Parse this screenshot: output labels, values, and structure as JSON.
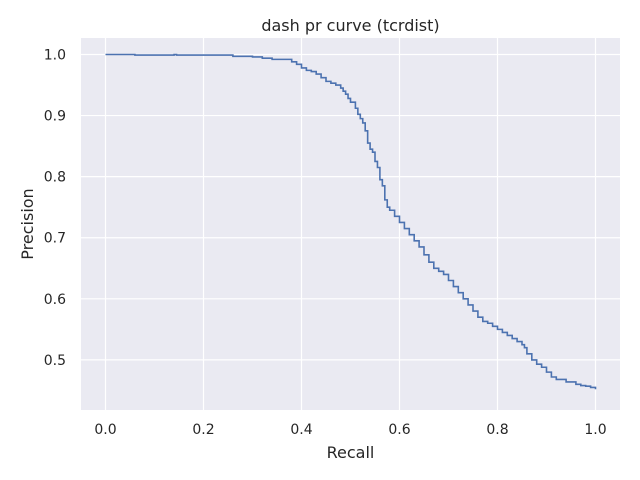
{
  "chart_data": {
    "type": "line",
    "title": "dash pr curve (tcrdist)",
    "xlabel": "Recall",
    "ylabel": "Precision",
    "xlim": [
      -0.05,
      1.05
    ],
    "ylim": [
      0.418,
      1.027
    ],
    "xticks": [
      0.0,
      0.2,
      0.4,
      0.6,
      0.8,
      1.0
    ],
    "xtick_labels": [
      "0.0",
      "0.2",
      "0.4",
      "0.6",
      "0.8",
      "1.0"
    ],
    "yticks": [
      0.5,
      0.6,
      0.7,
      0.8,
      0.9,
      1.0
    ],
    "ytick_labels": [
      "0.5",
      "0.6",
      "0.7",
      "0.8",
      "0.9",
      "1.0"
    ],
    "grid": true,
    "line_color": "#4c72b0",
    "background_color": "#eaeaf2",
    "series": [
      {
        "step": "post",
        "x": [
          0.0,
          0.06,
          0.14,
          0.145,
          0.26,
          0.3,
          0.32,
          0.34,
          0.38,
          0.39,
          0.4,
          0.41,
          0.42,
          0.43,
          0.44,
          0.45,
          0.46,
          0.47,
          0.48,
          0.485,
          0.49,
          0.495,
          0.5,
          0.51,
          0.515,
          0.52,
          0.525,
          0.53,
          0.535,
          0.54,
          0.545,
          0.55,
          0.555,
          0.56,
          0.565,
          0.57,
          0.575,
          0.58,
          0.59,
          0.6,
          0.61,
          0.62,
          0.63,
          0.64,
          0.65,
          0.66,
          0.67,
          0.68,
          0.69,
          0.7,
          0.71,
          0.72,
          0.73,
          0.74,
          0.75,
          0.76,
          0.77,
          0.78,
          0.79,
          0.8,
          0.81,
          0.82,
          0.83,
          0.84,
          0.85,
          0.855,
          0.86,
          0.87,
          0.88,
          0.89,
          0.9,
          0.91,
          0.92,
          0.94,
          0.96,
          0.97,
          0.98,
          0.99,
          1.0
        ],
        "y": [
          1.0,
          0.999,
          1.0,
          0.999,
          0.997,
          0.996,
          0.994,
          0.992,
          0.988,
          0.984,
          0.978,
          0.974,
          0.972,
          0.968,
          0.962,
          0.956,
          0.953,
          0.95,
          0.945,
          0.94,
          0.935,
          0.928,
          0.922,
          0.912,
          0.902,
          0.895,
          0.888,
          0.875,
          0.855,
          0.845,
          0.84,
          0.825,
          0.815,
          0.795,
          0.785,
          0.762,
          0.75,
          0.745,
          0.735,
          0.725,
          0.715,
          0.705,
          0.695,
          0.685,
          0.672,
          0.66,
          0.65,
          0.645,
          0.64,
          0.63,
          0.62,
          0.61,
          0.6,
          0.59,
          0.58,
          0.57,
          0.563,
          0.56,
          0.555,
          0.55,
          0.545,
          0.54,
          0.535,
          0.53,
          0.525,
          0.52,
          0.51,
          0.5,
          0.493,
          0.488,
          0.48,
          0.472,
          0.468,
          0.464,
          0.46,
          0.458,
          0.457,
          0.455,
          0.452
        ]
      }
    ]
  }
}
